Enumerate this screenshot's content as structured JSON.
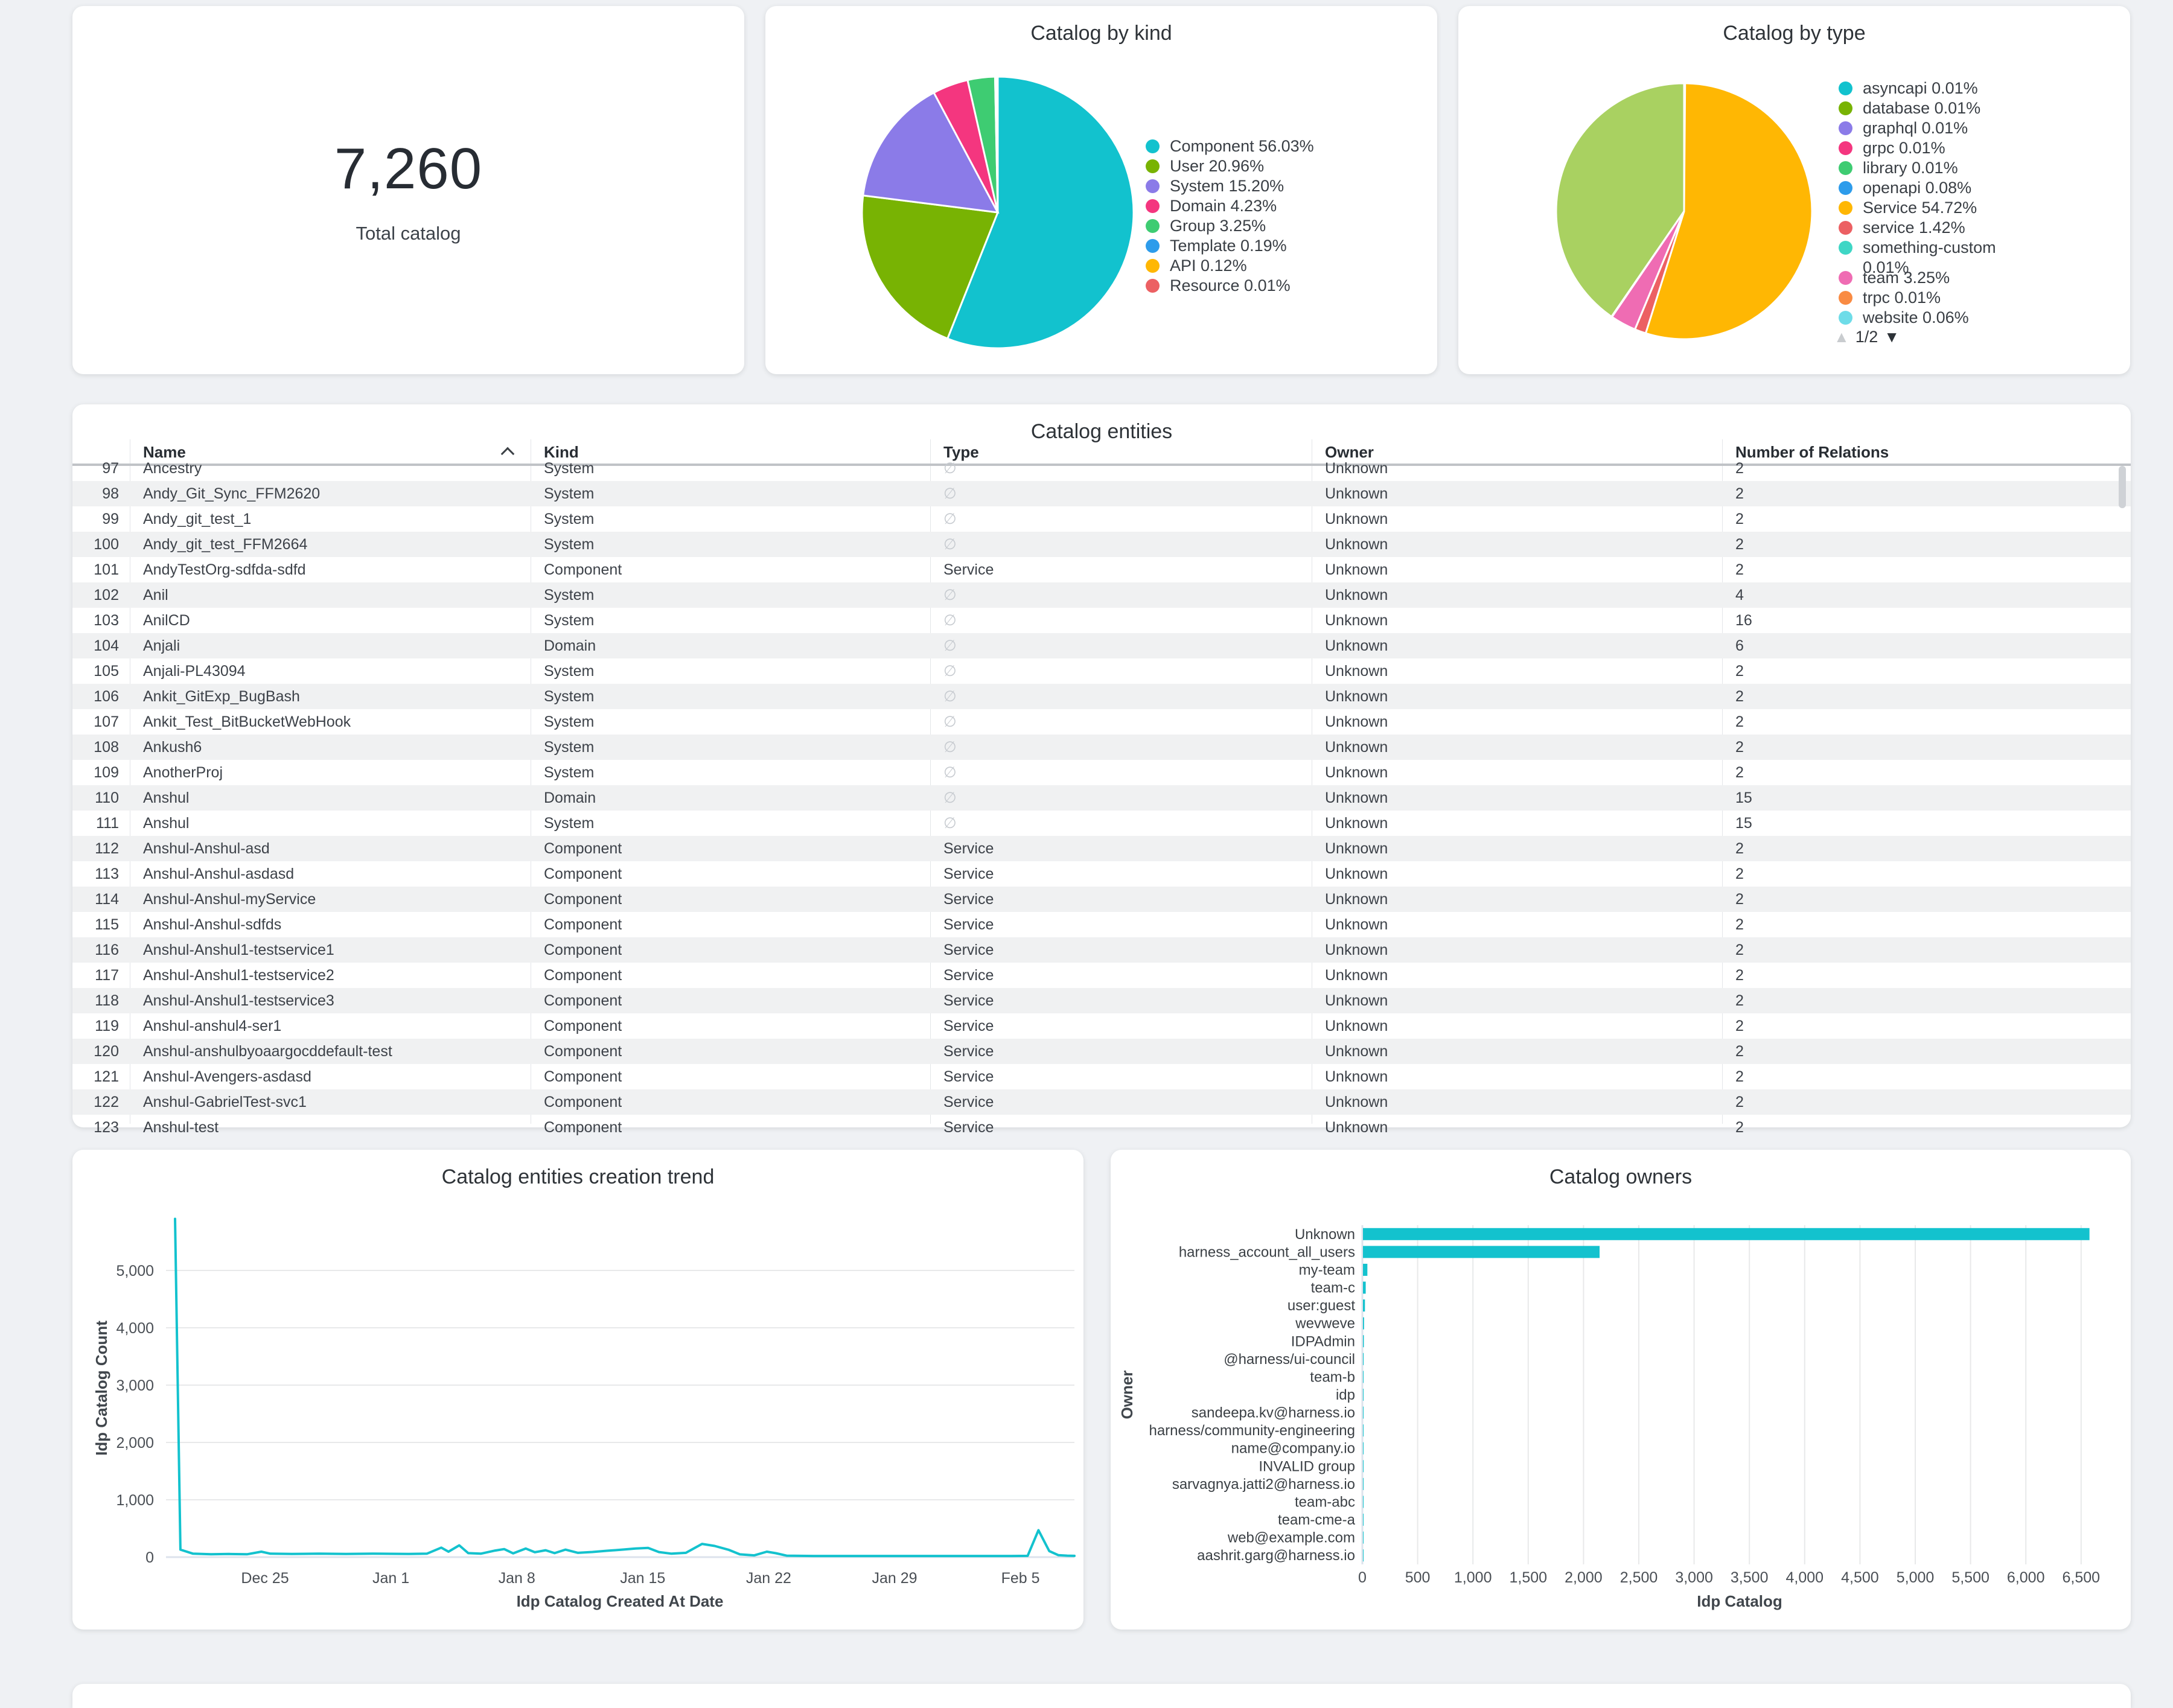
{
  "summary_card": {
    "value": "7,260",
    "label": "Total catalog"
  },
  "table": {
    "title": "Catalog entities",
    "columns": [
      "Name",
      "Kind",
      "Type",
      "Owner",
      "Number of Relations"
    ],
    "sort_column": "Name",
    "sort_direction": "asc",
    "empty_type_glyph": "∅",
    "rows": [
      {
        "n": 97,
        "name": "Ancestry",
        "kind": "System",
        "type": "",
        "owner": "Unknown",
        "rel": "2"
      },
      {
        "n": 98,
        "name": "Andy_Git_Sync_FFM2620",
        "kind": "System",
        "type": "",
        "owner": "Unknown",
        "rel": "2"
      },
      {
        "n": 99,
        "name": "Andy_git_test_1",
        "kind": "System",
        "type": "",
        "owner": "Unknown",
        "rel": "2"
      },
      {
        "n": 100,
        "name": "Andy_git_test_FFM2664",
        "kind": "System",
        "type": "",
        "owner": "Unknown",
        "rel": "2"
      },
      {
        "n": 101,
        "name": "AndyTestOrg-sdfda-sdfd",
        "kind": "Component",
        "type": "Service",
        "owner": "Unknown",
        "rel": "2"
      },
      {
        "n": 102,
        "name": "Anil",
        "kind": "System",
        "type": "",
        "owner": "Unknown",
        "rel": "4"
      },
      {
        "n": 103,
        "name": "AnilCD",
        "kind": "System",
        "type": "",
        "owner": "Unknown",
        "rel": "16"
      },
      {
        "n": 104,
        "name": "Anjali",
        "kind": "Domain",
        "type": "",
        "owner": "Unknown",
        "rel": "6"
      },
      {
        "n": 105,
        "name": "Anjali-PL43094",
        "kind": "System",
        "type": "",
        "owner": "Unknown",
        "rel": "2"
      },
      {
        "n": 106,
        "name": "Ankit_GitExp_BugBash",
        "kind": "System",
        "type": "",
        "owner": "Unknown",
        "rel": "2"
      },
      {
        "n": 107,
        "name": "Ankit_Test_BitBucketWebHook",
        "kind": "System",
        "type": "",
        "owner": "Unknown",
        "rel": "2"
      },
      {
        "n": 108,
        "name": "Ankush6",
        "kind": "System",
        "type": "",
        "owner": "Unknown",
        "rel": "2"
      },
      {
        "n": 109,
        "name": "AnotherProj",
        "kind": "System",
        "type": "",
        "owner": "Unknown",
        "rel": "2"
      },
      {
        "n": 110,
        "name": "Anshul",
        "kind": "Domain",
        "type": "",
        "owner": "Unknown",
        "rel": "15"
      },
      {
        "n": 111,
        "name": "Anshul",
        "kind": "System",
        "type": "",
        "owner": "Unknown",
        "rel": "15"
      },
      {
        "n": 112,
        "name": "Anshul-Anshul-asd",
        "kind": "Component",
        "type": "Service",
        "owner": "Unknown",
        "rel": "2"
      },
      {
        "n": 113,
        "name": "Anshul-Anshul-asdasd",
        "kind": "Component",
        "type": "Service",
        "owner": "Unknown",
        "rel": "2"
      },
      {
        "n": 114,
        "name": "Anshul-Anshul-myService",
        "kind": "Component",
        "type": "Service",
        "owner": "Unknown",
        "rel": "2"
      },
      {
        "n": 115,
        "name": "Anshul-Anshul-sdfds",
        "kind": "Component",
        "type": "Service",
        "owner": "Unknown",
        "rel": "2"
      },
      {
        "n": 116,
        "name": "Anshul-Anshul1-testservice1",
        "kind": "Component",
        "type": "Service",
        "owner": "Unknown",
        "rel": "2"
      },
      {
        "n": 117,
        "name": "Anshul-Anshul1-testservice2",
        "kind": "Component",
        "type": "Service",
        "owner": "Unknown",
        "rel": "2"
      },
      {
        "n": 118,
        "name": "Anshul-Anshul1-testservice3",
        "kind": "Component",
        "type": "Service",
        "owner": "Unknown",
        "rel": "2"
      },
      {
        "n": 119,
        "name": "Anshul-anshul4-ser1",
        "kind": "Component",
        "type": "Service",
        "owner": "Unknown",
        "rel": "2"
      },
      {
        "n": 120,
        "name": "Anshul-anshulbyoaargocddefault-test",
        "kind": "Component",
        "type": "Service",
        "owner": "Unknown",
        "rel": "2"
      },
      {
        "n": 121,
        "name": "Anshul-Avengers-asdasd",
        "kind": "Component",
        "type": "Service",
        "owner": "Unknown",
        "rel": "2"
      },
      {
        "n": 122,
        "name": "Anshul-GabrielTest-svc1",
        "kind": "Component",
        "type": "Service",
        "owner": "Unknown",
        "rel": "2"
      },
      {
        "n": 123,
        "name": "Anshul-test",
        "kind": "Component",
        "type": "Service",
        "owner": "Unknown",
        "rel": "2"
      }
    ]
  },
  "chart_data": [
    {
      "type": "pie",
      "title": "Catalog by kind",
      "legend_position": "right",
      "slices": [
        {
          "label": "Component",
          "pct": 56.03,
          "display": "Component 56.03%",
          "color": "#12c2ce"
        },
        {
          "label": "User",
          "pct": 20.96,
          "display": "User 20.96%",
          "color": "#78b303"
        },
        {
          "label": "System",
          "pct": 15.2,
          "display": "System 15.20%",
          "color": "#8b7be8"
        },
        {
          "label": "Domain",
          "pct": 4.23,
          "display": "Domain 4.23%",
          "color": "#f4367f"
        },
        {
          "label": "Group",
          "pct": 3.25,
          "display": "Group 3.25%",
          "color": "#3ecc72"
        },
        {
          "label": "Template",
          "pct": 0.19,
          "display": "Template 0.19%",
          "color": "#2d9ceb"
        },
        {
          "label": "API",
          "pct": 0.12,
          "display": "API 0.12%",
          "color": "#ffb703"
        },
        {
          "label": "Resource",
          "pct": 0.01,
          "display": "Resource 0.01%",
          "color": "#ec6063"
        }
      ]
    },
    {
      "type": "pie",
      "title": "Catalog by type",
      "legend_position": "right",
      "pagination": {
        "label": "1/2",
        "up_icon": "▲",
        "down_icon": "▼"
      },
      "slices": [
        {
          "label": "asyncapi",
          "pct": 0.01,
          "display": "asyncapi 0.01%",
          "color": "#12c2ce"
        },
        {
          "label": "database",
          "pct": 0.01,
          "display": "database 0.01%",
          "color": "#78b303"
        },
        {
          "label": "graphql",
          "pct": 0.01,
          "display": "graphql 0.01%",
          "color": "#8b7be8"
        },
        {
          "label": "grpc",
          "pct": 0.01,
          "display": "grpc 0.01%",
          "color": "#f4367f"
        },
        {
          "label": "library",
          "pct": 0.01,
          "display": "library 0.01%",
          "color": "#3ecc72"
        },
        {
          "label": "openapi",
          "pct": 0.08,
          "display": "openapi 0.08%",
          "color": "#2d9ceb"
        },
        {
          "label": "Service",
          "pct": 54.72,
          "display": "Service 54.72%",
          "color": "#ffb703"
        },
        {
          "label": "service",
          "pct": 1.42,
          "display": "service 1.42%",
          "color": "#ec6063"
        },
        {
          "label": "something-custom",
          "pct": 0.01,
          "display": "something-custom 0.01%",
          "color": "#3fd6c5"
        },
        {
          "label": "team",
          "pct": 3.25,
          "display": "team 3.25%",
          "color": "#ef6cb3"
        },
        {
          "label": "trpc",
          "pct": 0.01,
          "display": "trpc 0.01%",
          "color": "#f98b43"
        },
        {
          "label": "website",
          "pct": 0.06,
          "display": "website 0.06%",
          "color": "#6edce8"
        },
        {
          "label": "other-page-2",
          "pct": 40.4,
          "display": "",
          "color": "#a9d161",
          "legend": false
        }
      ]
    },
    {
      "type": "line",
      "title": "Catalog entities creation trend",
      "xlabel": "Idp Catalog Created At Date",
      "ylabel": "Idp Catalog Count",
      "color": "#13c2ce",
      "grid": true,
      "ylim": [
        0,
        5900
      ],
      "yticks": [
        0,
        1000,
        2000,
        3000,
        4000,
        5000
      ],
      "xticks": [
        {
          "label": "Dec 25",
          "day": 5
        },
        {
          "label": "Jan 1",
          "day": 12
        },
        {
          "label": "Jan 8",
          "day": 19
        },
        {
          "label": "Jan 15",
          "day": 26
        },
        {
          "label": "Jan 22",
          "day": 33
        },
        {
          "label": "Jan 29",
          "day": 40
        },
        {
          "label": "Feb 5",
          "day": 47
        }
      ],
      "points": [
        [
          0,
          5900
        ],
        [
          0.3,
          130
        ],
        [
          1,
          60
        ],
        [
          2,
          50
        ],
        [
          3,
          55
        ],
        [
          4,
          50
        ],
        [
          4.8,
          95
        ],
        [
          5.3,
          60
        ],
        [
          6.5,
          55
        ],
        [
          8,
          60
        ],
        [
          9.5,
          55
        ],
        [
          11,
          60
        ],
        [
          12,
          58
        ],
        [
          13,
          55
        ],
        [
          14,
          60
        ],
        [
          14.8,
          165
        ],
        [
          15.2,
          95
        ],
        [
          15.8,
          205
        ],
        [
          16.3,
          70
        ],
        [
          17,
          60
        ],
        [
          17.8,
          115
        ],
        [
          18.3,
          140
        ],
        [
          18.8,
          65
        ],
        [
          19.5,
          150
        ],
        [
          20,
          85
        ],
        [
          20.6,
          120
        ],
        [
          21.1,
          70
        ],
        [
          21.7,
          130
        ],
        [
          22.4,
          75
        ],
        [
          23.2,
          90
        ],
        [
          24,
          110
        ],
        [
          24.8,
          128
        ],
        [
          25.6,
          150
        ],
        [
          26.3,
          160
        ],
        [
          26.9,
          88
        ],
        [
          27.6,
          60
        ],
        [
          28.4,
          75
        ],
        [
          29.3,
          230
        ],
        [
          30,
          195
        ],
        [
          30.8,
          125
        ],
        [
          31.4,
          48
        ],
        [
          32.2,
          30
        ],
        [
          32.9,
          95
        ],
        [
          33.4,
          68
        ],
        [
          34,
          25
        ],
        [
          35.5,
          20
        ],
        [
          37,
          20
        ],
        [
          39,
          20
        ],
        [
          41,
          20
        ],
        [
          43,
          20
        ],
        [
          45,
          20
        ],
        [
          46.5,
          20
        ],
        [
          47.4,
          22
        ],
        [
          48,
          470
        ],
        [
          48.6,
          105
        ],
        [
          49.1,
          35
        ],
        [
          49.6,
          25
        ],
        [
          50,
          22
        ]
      ]
    },
    {
      "type": "bar",
      "title": "Catalog owners",
      "xlabel": "Idp Catalog",
      "ylabel": "Owner",
      "color": "#13c2ce",
      "grid": true,
      "xlim": [
        0,
        6500
      ],
      "xticks": [
        0,
        500,
        1000,
        1500,
        2000,
        2500,
        3000,
        3500,
        4000,
        4500,
        5000,
        5500,
        6000,
        6500
      ],
      "categories": [
        "Unknown",
        "harness_account_all_users",
        "my-team",
        "team-c",
        "user:guest",
        "wevweve",
        "IDPAdmin",
        "@harness/ui-council",
        "team-b",
        "idp",
        "sandeepa.kv@harness.io",
        "harness/community-engineering",
        "name@company.io",
        "INVALID group",
        "sarvagnya.jatti2@harness.io",
        "team-abc",
        "team-cme-a",
        "web@example.com",
        "aashrit.garg@harness.io"
      ],
      "values": [
        6570,
        2140,
        40,
        25,
        18,
        10,
        8,
        6,
        5,
        5,
        4,
        4,
        3,
        3,
        3,
        2,
        2,
        2,
        2
      ]
    }
  ]
}
